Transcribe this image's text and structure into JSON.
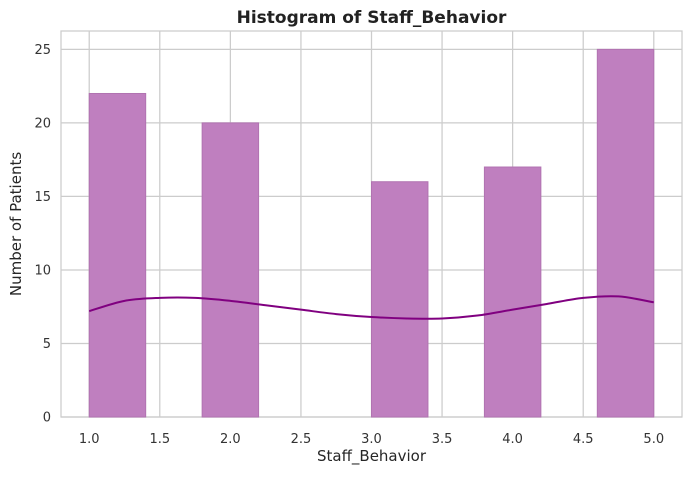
{
  "chart_data": {
    "type": "bar",
    "title": "Histogram of Staff_Behavior",
    "xlabel": "Staff_Behavior",
    "ylabel": "Number of Patients",
    "xlim": [
      0.8,
      5.2
    ],
    "ylim": [
      0,
      26.25
    ],
    "xticks": [
      "1.0",
      "1.5",
      "2.0",
      "2.5",
      "3.0",
      "3.5",
      "4.0",
      "4.5",
      "5.0"
    ],
    "yticks": [
      "0",
      "5",
      "10",
      "15",
      "20",
      "25"
    ],
    "bins": [
      {
        "start": 1.0,
        "end": 1.4,
        "count": 22
      },
      {
        "start": 1.4,
        "end": 1.8,
        "count": 0
      },
      {
        "start": 1.8,
        "end": 2.2,
        "count": 20
      },
      {
        "start": 2.2,
        "end": 2.6,
        "count": 0
      },
      {
        "start": 2.6,
        "end": 3.0,
        "count": 0
      },
      {
        "start": 3.0,
        "end": 3.4,
        "count": 16
      },
      {
        "start": 3.4,
        "end": 3.8,
        "count": 0
      },
      {
        "start": 3.8,
        "end": 4.2,
        "count": 17
      },
      {
        "start": 4.2,
        "end": 4.6,
        "count": 0
      },
      {
        "start": 4.6,
        "end": 5.0,
        "count": 25
      }
    ],
    "kde": {
      "x": [
        1.0,
        1.25,
        1.5,
        1.75,
        2.0,
        2.25,
        2.5,
        2.75,
        3.0,
        3.25,
        3.5,
        3.75,
        4.0,
        4.25,
        4.5,
        4.75,
        5.0
      ],
      "y": [
        7.2,
        7.9,
        8.1,
        8.1,
        7.9,
        7.6,
        7.3,
        7.0,
        6.8,
        6.7,
        6.7,
        6.9,
        7.3,
        7.7,
        8.1,
        8.2,
        7.8
      ]
    },
    "grid": true,
    "colors": {
      "bar_fill": "#bf7fbf",
      "bar_edge": "#b173b1",
      "kde_line": "#800080",
      "grid": "#cccccc",
      "axes_edge": "#cccccc"
    }
  }
}
